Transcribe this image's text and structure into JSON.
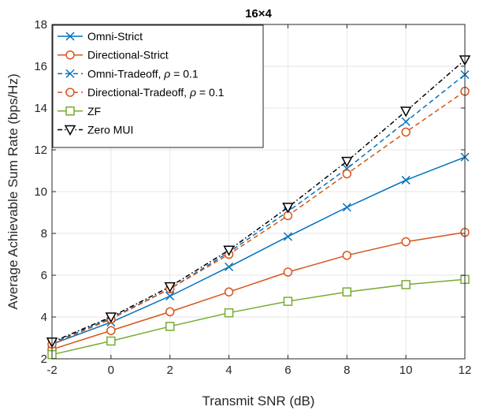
{
  "chart_data": {
    "type": "line",
    "title": "16×4",
    "xlabel": "Transmit SNR (dB)",
    "ylabel": "Average Achievable Sum Rate (bps/Hz)",
    "xlim": [
      -2,
      12
    ],
    "ylim": [
      2,
      18
    ],
    "xticks": [
      -2,
      0,
      2,
      4,
      6,
      8,
      10,
      12
    ],
    "yticks": [
      2,
      4,
      6,
      8,
      10,
      12,
      14,
      16,
      18
    ],
    "grid": true,
    "legend_position": "top-left",
    "x": [
      -2,
      0,
      2,
      4,
      6,
      8,
      10,
      12
    ],
    "series": [
      {
        "name": "Omni-Strict",
        "values": [
          2.7,
          3.75,
          5.0,
          6.4,
          7.85,
          9.25,
          10.55,
          11.65
        ],
        "color": "#0072BD",
        "marker": "x",
        "dash": "solid"
      },
      {
        "name": "Directional-Strict",
        "values": [
          2.45,
          3.35,
          4.25,
          5.2,
          6.15,
          6.95,
          7.6,
          8.05
        ],
        "color": "#D95319",
        "marker": "o",
        "dash": "solid"
      },
      {
        "name_prefix": "Omni-Tradeoff, ",
        "name_symbol": "ρ",
        "name_suffix": " = 0.1",
        "values": [
          2.75,
          3.95,
          5.35,
          7.1,
          9.05,
          11.1,
          13.35,
          15.6
        ],
        "color": "#0072BD",
        "marker": "x",
        "dash": "dashed"
      },
      {
        "name_prefix": "Directional-Tradeoff, ",
        "name_symbol": "ρ",
        "name_suffix": " = 0.1",
        "values": [
          2.7,
          3.9,
          5.35,
          7.0,
          8.85,
          10.85,
          12.85,
          14.8
        ],
        "color": "#D95319",
        "marker": "o",
        "dash": "dashed"
      },
      {
        "name": "ZF",
        "values": [
          2.2,
          2.85,
          3.55,
          4.2,
          4.75,
          5.2,
          5.55,
          5.8
        ],
        "color": "#77AC30",
        "marker": "square",
        "dash": "solid"
      },
      {
        "name": "Zero MUI",
        "values": [
          2.8,
          4.0,
          5.45,
          7.2,
          9.25,
          11.45,
          13.85,
          16.3
        ],
        "color": "#000000",
        "marker": "triangle-down",
        "dash": "dashdot"
      }
    ]
  }
}
